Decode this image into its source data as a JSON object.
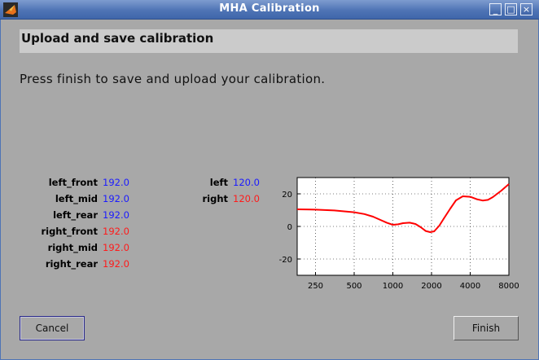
{
  "window": {
    "title": "MHA Calibration",
    "controls": [
      "minimize-icon",
      "maximize-icon",
      "close-icon"
    ]
  },
  "header": {
    "title": "Upload and save calibration"
  },
  "instruction": "Press finish to save and upload your calibration.",
  "params_left": [
    {
      "label": "left_front",
      "value": "192.0",
      "color": "#1a1aff"
    },
    {
      "label": "left_mid",
      "value": "192.0",
      "color": "#1a1aff"
    },
    {
      "label": "left_rear",
      "value": "192.0",
      "color": "#1a1aff"
    },
    {
      "label": "right_front",
      "value": "192.0",
      "color": "#ff1a1a"
    },
    {
      "label": "right_mid",
      "value": "192.0",
      "color": "#ff1a1a"
    },
    {
      "label": "right_rear",
      "value": "192.0",
      "color": "#ff1a1a"
    }
  ],
  "params_right": [
    {
      "label": "left",
      "value": "120.0",
      "color": "#1a1aff"
    },
    {
      "label": "right",
      "value": "120.0",
      "color": "#ff1a1a"
    }
  ],
  "chart_data": {
    "type": "line",
    "xscale": "log",
    "xlim": [
      180,
      8000
    ],
    "ylim": [
      -30,
      30
    ],
    "xticks": [
      250,
      500,
      1000,
      2000,
      4000,
      8000
    ],
    "yticks": [
      20,
      0,
      -20
    ],
    "grid": true,
    "series": [
      {
        "color": "#ff0000",
        "x": [
          180,
          250,
          350,
          500,
          600,
          700,
          800,
          900,
          1000,
          1100,
          1200,
          1350,
          1500,
          1650,
          1800,
          1950,
          2100,
          2300,
          2500,
          2800,
          3100,
          3500,
          4000,
          4500,
          5000,
          5500,
          6000,
          7000,
          8000
        ],
        "y": [
          10.5,
          10.3,
          9.8,
          8.7,
          7.6,
          6.0,
          4.0,
          2.2,
          1.0,
          1.3,
          2.0,
          2.3,
          1.5,
          -0.5,
          -2.8,
          -3.5,
          -3.0,
          0.5,
          5.0,
          11.0,
          16.0,
          18.5,
          18.2,
          16.7,
          15.9,
          16.3,
          18.0,
          22.0,
          26.0
        ]
      }
    ]
  },
  "buttons": {
    "cancel": "Cancel",
    "finish": "Finish"
  }
}
